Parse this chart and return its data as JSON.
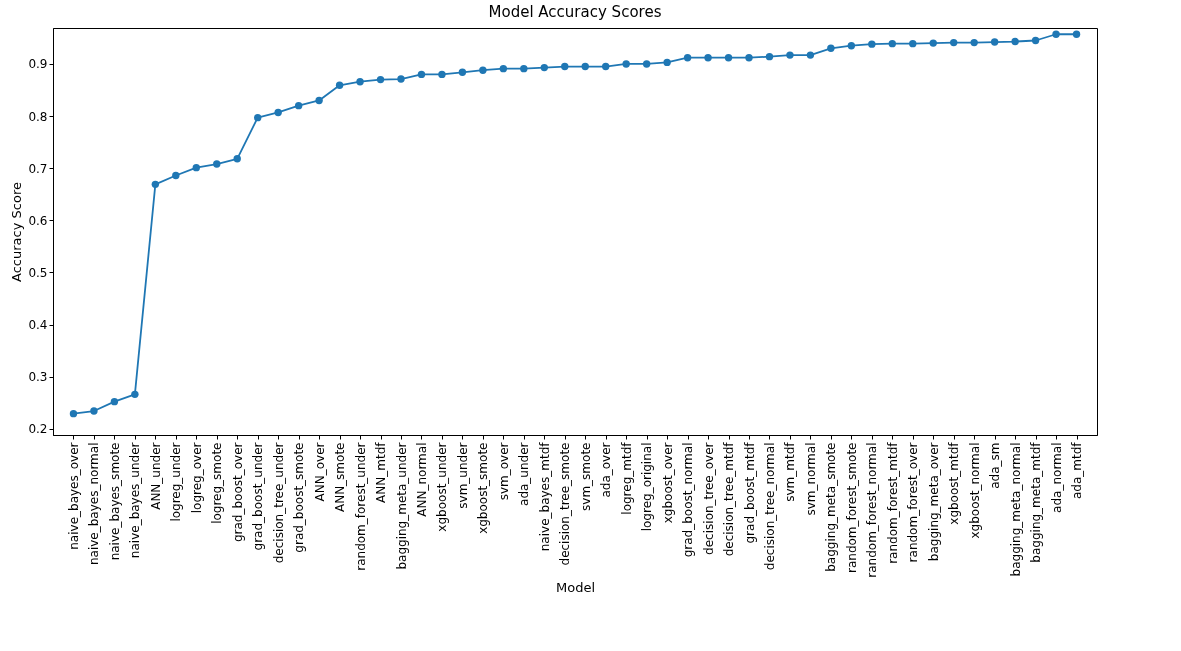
{
  "chart_data": {
    "type": "line",
    "title": "Model Accuracy Scores",
    "xlabel": "Model",
    "ylabel": "Accuracy Score",
    "categories": [
      "naive_bayes_over",
      "naive_bayes_normal",
      "naive_bayes_smote",
      "naive_bayes_under",
      "ANN_under",
      "logreg_under",
      "logreg_over",
      "logreg_smote",
      "grad_boost_over",
      "grad_boost_under",
      "decision_tree_under",
      "grad_boost_smote",
      "ANN_over",
      "ANN_smote",
      "random_forest_under",
      "ANN_mtdf",
      "bagging_meta_under",
      "ANN_normal",
      "xgboost_under",
      "svm_under",
      "xgboost_smote",
      "svm_over",
      "ada_under",
      "naive_bayes_mtdf",
      "decision_tree_smote",
      "svm_smote",
      "ada_over",
      "logreg_mtdf",
      "logreg_original",
      "xgboost_over",
      "grad_boost_normal",
      "decision_tree_over",
      "decision_tree_mtdf",
      "grad_boost_mtdf",
      "decision_tree_normal",
      "svm_mtdf",
      "svm_normal",
      "bagging_meta_smote",
      "random_forest_smote",
      "random_forest_normal",
      "random_forest_mtdf",
      "random_forest_over",
      "bagging_meta_over",
      "xgboost_mtdf",
      "xgboost_normal",
      "ada_sm",
      "bagging_meta_normal",
      "bagging_meta_mtdf",
      "ada_normal",
      "ada_mtdf"
    ],
    "series": [
      {
        "color": "#1f77b4",
        "values": [
          0.229,
          0.234,
          0.252,
          0.266,
          0.669,
          0.686,
          0.701,
          0.708,
          0.718,
          0.797,
          0.807,
          0.82,
          0.83,
          0.859,
          0.866,
          0.87,
          0.871,
          0.88,
          0.88,
          0.884,
          0.888,
          0.891,
          0.891,
          0.893,
          0.895,
          0.895,
          0.895,
          0.9,
          0.9,
          0.903,
          0.912,
          0.912,
          0.912,
          0.912,
          0.914,
          0.917,
          0.917,
          0.93,
          0.935,
          0.938,
          0.939,
          0.939,
          0.94,
          0.941,
          0.941,
          0.942,
          0.943,
          0.945,
          0.957,
          0.957
        ]
      }
    ],
    "ylim": [
      0.188,
      0.969
    ],
    "yticks": [
      0.2,
      0.3,
      0.4,
      0.5,
      0.6,
      0.7,
      0.8,
      0.9
    ],
    "grid": false,
    "legend": false,
    "marker": "circle",
    "line_style": "solid"
  }
}
